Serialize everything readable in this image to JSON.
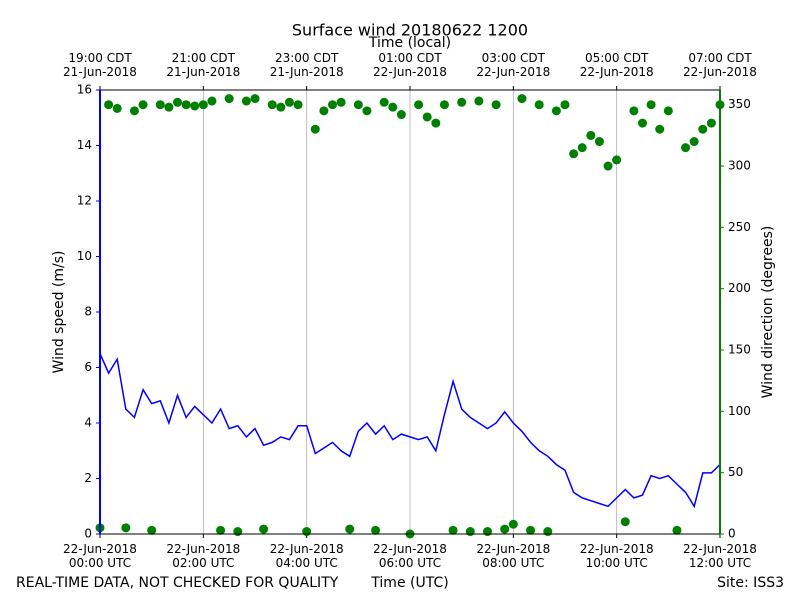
{
  "chart_data": {
    "type": "line",
    "title": "Surface wind 20180622 1200",
    "x2label": "Time (local)",
    "xlabel": "Time (UTC)",
    "ylabel": "Wind speed (m/s)",
    "y2label": "Wind direction (degrees)",
    "footer_left": "REAL-TIME DATA, NOT CHECKED FOR QUALITY",
    "footer_right": "Site: ISS3",
    "grid": "x",
    "ycolor": "#0000ff",
    "y2color": "#008000",
    "xlim": [
      "2018-06-22T00:00",
      "2018-06-22T12:00"
    ],
    "xticks": [
      {
        "value": "2018-06-22T00:00",
        "label": "22-Jun-2018\n00:00 UTC"
      },
      {
        "value": "2018-06-22T02:00",
        "label": "22-Jun-2018\n02:00 UTC"
      },
      {
        "value": "2018-06-22T04:00",
        "label": "22-Jun-2018\n04:00 UTC"
      },
      {
        "value": "2018-06-22T06:00",
        "label": "22-Jun-2018\n06:00 UTC"
      },
      {
        "value": "2018-06-22T08:00",
        "label": "22-Jun-2018\n08:00 UTC"
      },
      {
        "value": "2018-06-22T10:00",
        "label": "22-Jun-2018\n10:00 UTC"
      },
      {
        "value": "2018-06-22T12:00",
        "label": "22-Jun-2018\n12:00 UTC"
      }
    ],
    "x2ticks": [
      {
        "value": "2018-06-22T00:00",
        "label": "19:00 CDT\n21-Jun-2018"
      },
      {
        "value": "2018-06-22T02:00",
        "label": "21:00 CDT\n21-Jun-2018"
      },
      {
        "value": "2018-06-22T04:00",
        "label": "23:00 CDT\n21-Jun-2018"
      },
      {
        "value": "2018-06-22T06:00",
        "label": "01:00 CDT\n22-Jun-2018"
      },
      {
        "value": "2018-06-22T08:00",
        "label": "03:00 CDT\n22-Jun-2018"
      },
      {
        "value": "2018-06-22T10:00",
        "label": "05:00 CDT\n22-Jun-2018"
      },
      {
        "value": "2018-06-22T12:00",
        "label": "07:00 CDT\n22-Jun-2018"
      }
    ],
    "ylim": [
      0,
      16
    ],
    "yticks": [
      0,
      2,
      4,
      6,
      8,
      10,
      12,
      14,
      16
    ],
    "y2lim": [
      0,
      362
    ],
    "y2ticks": [
      0,
      50,
      100,
      150,
      200,
      250,
      300,
      350
    ],
    "x": [
      "2018-06-22T00:00",
      "2018-06-22T00:10",
      "2018-06-22T00:20",
      "2018-06-22T00:30",
      "2018-06-22T00:40",
      "2018-06-22T00:50",
      "2018-06-22T01:00",
      "2018-06-22T01:10",
      "2018-06-22T01:20",
      "2018-06-22T01:30",
      "2018-06-22T01:40",
      "2018-06-22T01:50",
      "2018-06-22T02:00",
      "2018-06-22T02:10",
      "2018-06-22T02:20",
      "2018-06-22T02:30",
      "2018-06-22T02:40",
      "2018-06-22T02:50",
      "2018-06-22T03:00",
      "2018-06-22T03:10",
      "2018-06-22T03:20",
      "2018-06-22T03:30",
      "2018-06-22T03:40",
      "2018-06-22T03:50",
      "2018-06-22T04:00",
      "2018-06-22T04:10",
      "2018-06-22T04:20",
      "2018-06-22T04:30",
      "2018-06-22T04:40",
      "2018-06-22T04:50",
      "2018-06-22T05:00",
      "2018-06-22T05:10",
      "2018-06-22T05:20",
      "2018-06-22T05:30",
      "2018-06-22T05:40",
      "2018-06-22T05:50",
      "2018-06-22T06:00",
      "2018-06-22T06:10",
      "2018-06-22T06:20",
      "2018-06-22T06:30",
      "2018-06-22T06:40",
      "2018-06-22T06:50",
      "2018-06-22T07:00",
      "2018-06-22T07:10",
      "2018-06-22T07:20",
      "2018-06-22T07:30",
      "2018-06-22T07:40",
      "2018-06-22T07:50",
      "2018-06-22T08:00",
      "2018-06-22T08:10",
      "2018-06-22T08:20",
      "2018-06-22T08:30",
      "2018-06-22T08:40",
      "2018-06-22T08:50",
      "2018-06-22T09:00",
      "2018-06-22T09:10",
      "2018-06-22T09:20",
      "2018-06-22T09:30",
      "2018-06-22T09:40",
      "2018-06-22T09:50",
      "2018-06-22T10:00",
      "2018-06-22T10:10",
      "2018-06-22T10:20",
      "2018-06-22T10:30",
      "2018-06-22T10:40",
      "2018-06-22T10:50",
      "2018-06-22T11:00",
      "2018-06-22T11:10",
      "2018-06-22T11:20",
      "2018-06-22T11:30",
      "2018-06-22T11:40",
      "2018-06-22T11:50",
      "2018-06-22T12:00"
    ],
    "series": [
      {
        "kind": "line",
        "axis": "y",
        "color": "#0000ff",
        "values": [
          6.5,
          5.8,
          6.3,
          4.5,
          4.2,
          5.2,
          4.7,
          4.8,
          4.0,
          5.0,
          4.2,
          4.6,
          4.3,
          4.0,
          4.5,
          3.8,
          3.9,
          3.5,
          3.8,
          3.2,
          3.3,
          3.5,
          3.4,
          3.9,
          3.9,
          2.9,
          3.1,
          3.3,
          3.0,
          2.8,
          3.7,
          4.0,
          3.6,
          3.9,
          3.4,
          3.6,
          3.5,
          3.4,
          3.5,
          3.0,
          4.3,
          5.5,
          4.5,
          4.2,
          4.0,
          3.8,
          4.0,
          4.4,
          4.0,
          3.7,
          3.3,
          3.0,
          2.8,
          2.5,
          2.3,
          1.5,
          1.3,
          1.2,
          1.1,
          1.0,
          1.3,
          1.6,
          1.3,
          1.4,
          2.1,
          2.0,
          2.1,
          1.8,
          1.5,
          1.0,
          2.2,
          2.2,
          2.5
        ]
      },
      {
        "kind": "scatter",
        "axis": "y2",
        "color": "#008000",
        "values": [
          5,
          350,
          347,
          5,
          345,
          350,
          3,
          350,
          348,
          352,
          350,
          349,
          350,
          353,
          3,
          355,
          2,
          353,
          355,
          4,
          350,
          348,
          352,
          350,
          2,
          330,
          345,
          350,
          352,
          4,
          350,
          345,
          3,
          352,
          348,
          342,
          0,
          350,
          340,
          335,
          350,
          3,
          352,
          2,
          353,
          2,
          350,
          4,
          8,
          355,
          3,
          350,
          2,
          345,
          350,
          310,
          315,
          325,
          320,
          300,
          305,
          10,
          345,
          335,
          350,
          330,
          345,
          3,
          315,
          320,
          330,
          335,
          350
        ]
      }
    ]
  }
}
